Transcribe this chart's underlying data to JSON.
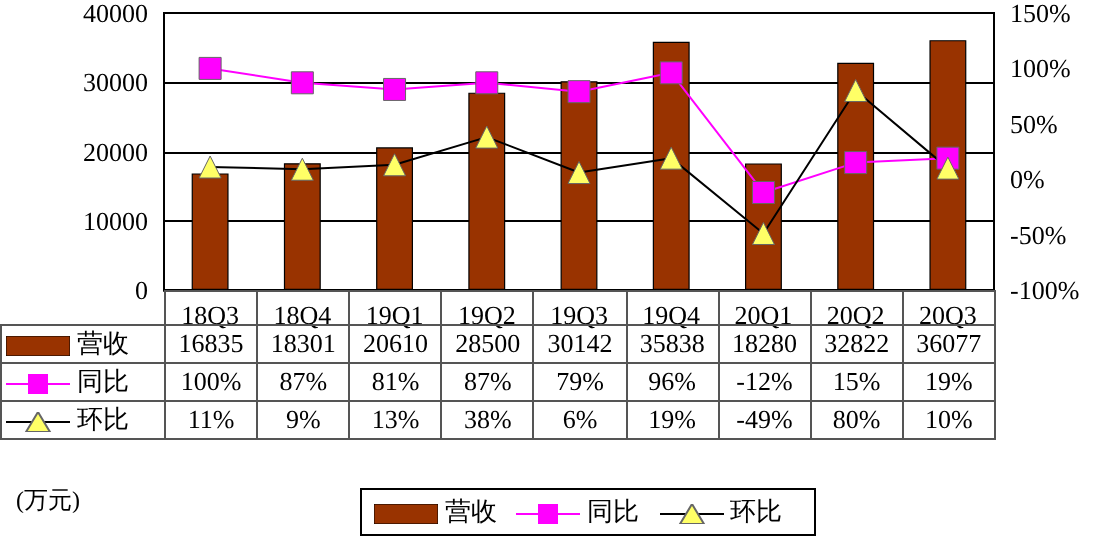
{
  "chart_data": {
    "type": "bar",
    "categories": [
      "18Q3",
      "18Q4",
      "19Q1",
      "19Q2",
      "19Q3",
      "19Q4",
      "20Q1",
      "20Q2",
      "20Q3"
    ],
    "series": [
      {
        "name": "营收",
        "color": "#993300",
        "values": [
          16835,
          18301,
          20610,
          28500,
          30142,
          35838,
          18280,
          32822,
          36077
        ],
        "value_labels": [
          "16835",
          "18301",
          "20610",
          "28500",
          "30142",
          "35838",
          "18280",
          "32822",
          "36077"
        ]
      },
      {
        "name": "同比",
        "type": "line",
        "axis": "y2",
        "marker": "square",
        "color": "#ff00ff",
        "values": [
          100,
          87,
          81,
          87,
          79,
          96,
          -12,
          15,
          19
        ],
        "value_labels": [
          "100%",
          "87%",
          "81%",
          "87%",
          "79%",
          "96%",
          "-12%",
          "15%",
          "19%"
        ]
      },
      {
        "name": "环比",
        "type": "line",
        "axis": "y2",
        "marker": "triangle",
        "color": "#ffff66",
        "values": [
          11,
          9,
          13,
          38,
          6,
          19,
          -49,
          80,
          10
        ],
        "value_labels": [
          "11%",
          "9%",
          "13%",
          "38%",
          "6%",
          "19%",
          "-49%",
          "80%",
          "10%"
        ]
      }
    ],
    "ylim": [
      0,
      40000
    ],
    "yticks": [
      0,
      10000,
      20000,
      30000,
      40000
    ],
    "y2lim": [
      -100,
      150
    ],
    "y2ticks": [
      {
        "value": -100,
        "label": "-100%"
      },
      {
        "value": -50,
        "label": "-50%"
      },
      {
        "value": 0,
        "label": "0%"
      },
      {
        "value": 50,
        "label": "50%"
      },
      {
        "value": 100,
        "label": "100%"
      },
      {
        "value": 150,
        "label": "150%"
      }
    ],
    "grid": "y",
    "legend": "bottom",
    "annotations": [
      "(万元)"
    ]
  }
}
